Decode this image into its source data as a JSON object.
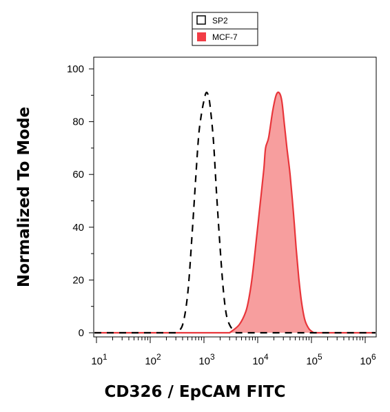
{
  "chart_data": {
    "type": "area",
    "title": "",
    "xlabel": "CD326 / EpCAM FITC",
    "ylabel": "Normalized To Mode",
    "x_scale": "log",
    "xlim": [
      10,
      1000000
    ],
    "ylim": [
      0,
      100
    ],
    "grid": false,
    "legend_position": "top-center",
    "x_tick_labels": [
      {
        "base": "10",
        "exp": "1",
        "value": 10
      },
      {
        "base": "10",
        "exp": "2",
        "value": 100
      },
      {
        "base": "10",
        "exp": "3",
        "value": 1000
      },
      {
        "base": "10",
        "exp": "4",
        "value": 10000
      },
      {
        "base": "10",
        "exp": "5",
        "value": 100000
      },
      {
        "base": "10",
        "exp": "6",
        "value": 1000000
      }
    ],
    "y_tick_labels": [
      "0",
      "20",
      "40",
      "60",
      "80",
      "100"
    ],
    "y_ticks": [
      0,
      20,
      40,
      60,
      80,
      100
    ],
    "series": [
      {
        "name": "SP2",
        "style": "dashed",
        "fill": "none",
        "color": "#000000",
        "points": [
          [
            300,
            0
          ],
          [
            400,
            3
          ],
          [
            500,
            15
          ],
          [
            600,
            37
          ],
          [
            700,
            58
          ],
          [
            800,
            75
          ],
          [
            900,
            83
          ],
          [
            1000,
            88
          ],
          [
            1100,
            91
          ],
          [
            1200,
            90
          ],
          [
            1300,
            86
          ],
          [
            1500,
            73
          ],
          [
            1700,
            54
          ],
          [
            2000,
            32
          ],
          [
            2300,
            16
          ],
          [
            2600,
            7
          ],
          [
            3000,
            3
          ],
          [
            3500,
            1
          ],
          [
            4000,
            0
          ]
        ]
      },
      {
        "name": "MCF-7",
        "style": "solid",
        "fill": "#f79e9e",
        "color": "#e8353a",
        "points": [
          [
            3000,
            0
          ],
          [
            4500,
            3
          ],
          [
            6000,
            8
          ],
          [
            7000,
            14
          ],
          [
            8000,
            22
          ],
          [
            9500,
            36
          ],
          [
            11000,
            48
          ],
          [
            13000,
            62
          ],
          [
            14000,
            70
          ],
          [
            16000,
            74
          ],
          [
            19000,
            84
          ],
          [
            22000,
            90
          ],
          [
            25000,
            91
          ],
          [
            28000,
            88
          ],
          [
            31000,
            80
          ],
          [
            35000,
            70
          ],
          [
            40000,
            60
          ],
          [
            46000,
            46
          ],
          [
            52000,
            32
          ],
          [
            58000,
            21
          ],
          [
            65000,
            12
          ],
          [
            75000,
            5
          ],
          [
            90000,
            1.5
          ],
          [
            110000,
            0
          ]
        ]
      }
    ]
  },
  "colors": {
    "sp2_line": "#000000",
    "mcf7_line": "#e8353a",
    "mcf7_fill": "#f79e9e",
    "mcf7_legend_swatch": "#f23d46"
  }
}
